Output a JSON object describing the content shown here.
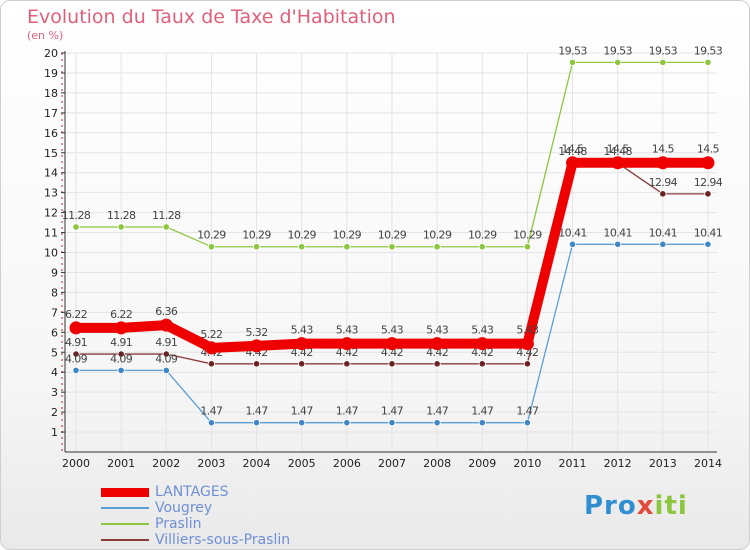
{
  "title": "Evolution du Taux de Taxe d'Habitation",
  "subtitle": "(en %)",
  "logo": {
    "part1": "Pro",
    "part2": "x",
    "part3": "iti"
  },
  "chart_data": {
    "type": "line",
    "x": [
      "2000",
      "2001",
      "2002",
      "2003",
      "2004",
      "2005",
      "2006",
      "2007",
      "2008",
      "2009",
      "2010",
      "2011",
      "2012",
      "2013",
      "2014"
    ],
    "ylim": [
      0,
      20
    ],
    "yticks": [
      1,
      2,
      3,
      4,
      5,
      6,
      7,
      8,
      9,
      10,
      11,
      12,
      13,
      14,
      15,
      16,
      17,
      18,
      19,
      20
    ],
    "grid": true,
    "legend_position": "bottom-left",
    "series": [
      {
        "name": "Praslin",
        "color": "#8dc63f",
        "dot_color": "#8dc63f",
        "stroke": "thin",
        "values": [
          11.28,
          11.28,
          11.28,
          10.29,
          10.29,
          10.29,
          10.29,
          10.29,
          10.29,
          10.29,
          10.29,
          19.53,
          19.53,
          19.53,
          19.53
        ]
      },
      {
        "name": "Villiers-sous-Praslin",
        "color": "#8a3b3b",
        "dot_color": "#6b2222",
        "stroke": "thin",
        "values": [
          4.91,
          4.91,
          4.91,
          4.42,
          4.42,
          4.42,
          4.42,
          4.42,
          4.42,
          4.42,
          4.42,
          14.48,
          14.48,
          12.94,
          12.94
        ]
      },
      {
        "name": "Vougrey",
        "color": "#5a9fd4",
        "dot_color": "#3f86c7",
        "stroke": "thin",
        "values": [
          4.09,
          4.09,
          4.09,
          1.47,
          1.47,
          1.47,
          1.47,
          1.47,
          1.47,
          1.47,
          1.47,
          10.41,
          10.41,
          10.41,
          10.41
        ]
      },
      {
        "name": "LANTAGES",
        "color": "#ee0000",
        "dot_color": "#ee0000",
        "stroke": "thick",
        "values": [
          6.22,
          6.22,
          6.36,
          5.22,
          5.32,
          5.43,
          5.43,
          5.43,
          5.43,
          5.43,
          5.43,
          14.5,
          14.5,
          14.5,
          14.5
        ]
      }
    ],
    "legend": [
      {
        "name": "LANTAGES",
        "color": "#ee0000",
        "text_color": "#6f8fd6",
        "stroke": "thick"
      },
      {
        "name": "Vougrey",
        "color": "#5a9fd4",
        "text_color": "#6f8fd6",
        "stroke": "thin"
      },
      {
        "name": "Praslin",
        "color": "#8dc63f",
        "text_color": "#6f8fd6",
        "stroke": "thin"
      },
      {
        "name": "Villiers-sous-Praslin",
        "color": "#8a3b3b",
        "text_color": "#6f8fd6",
        "stroke": "thin"
      }
    ]
  }
}
